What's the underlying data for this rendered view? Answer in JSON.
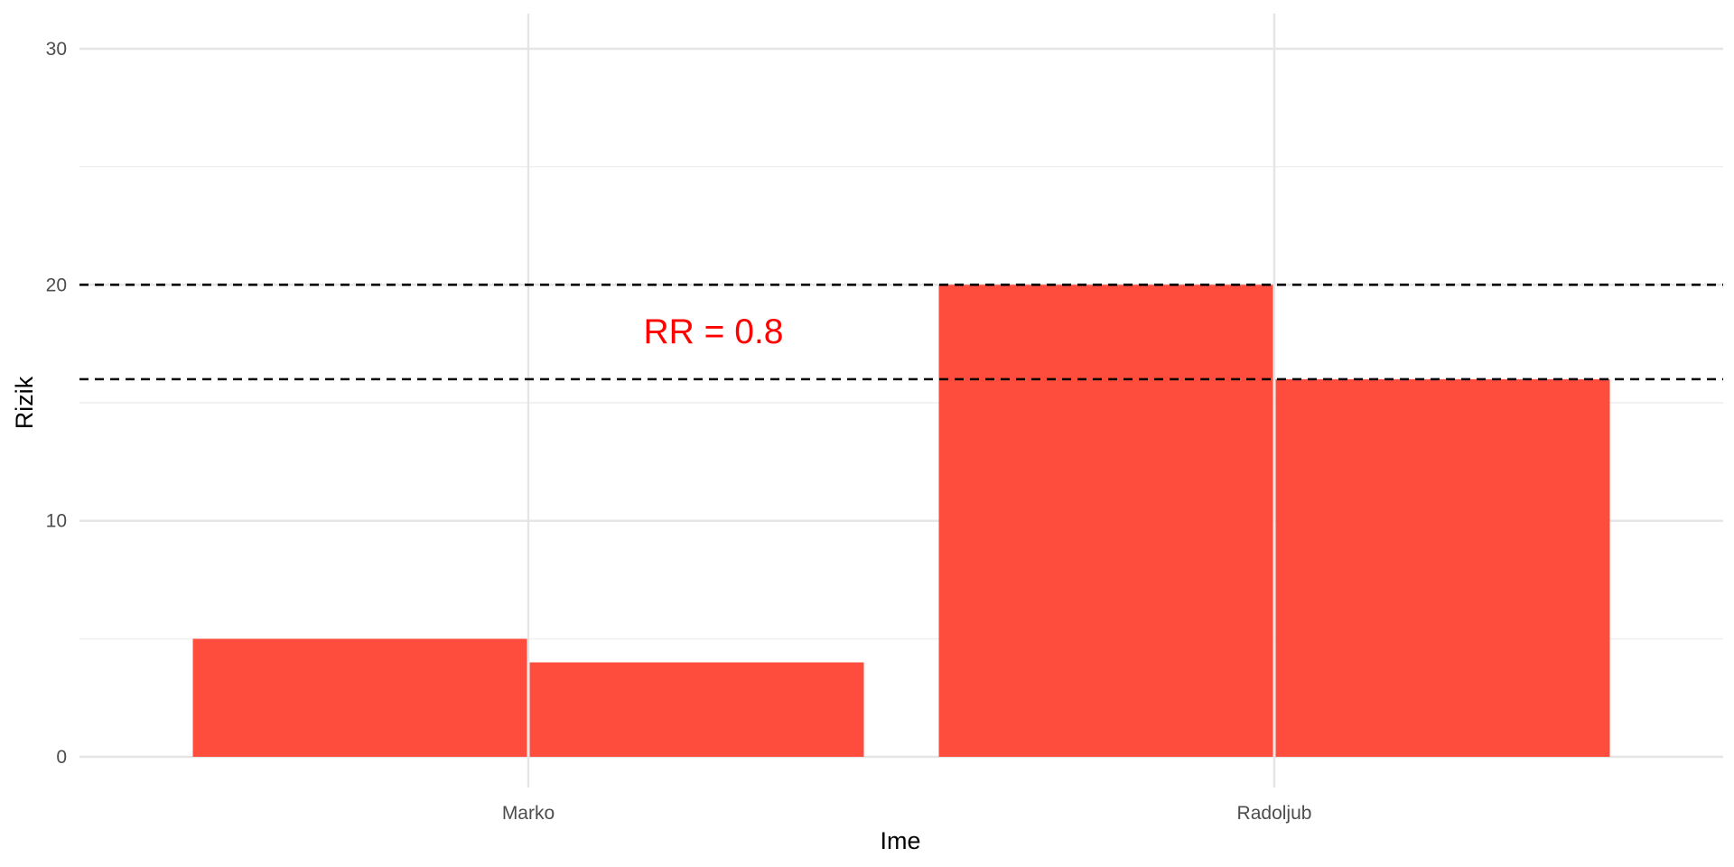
{
  "chart_data": {
    "type": "bar",
    "title": "",
    "xlabel": "Ime",
    "ylabel": "Rizik",
    "categories": [
      "Marko",
      "Radoljub"
    ],
    "series": [
      {
        "values": [
          5,
          20
        ]
      },
      {
        "values": [
          4,
          16
        ]
      }
    ],
    "ylim": [
      0,
      31.5
    ],
    "yticks": [
      0,
      10,
      20,
      30
    ],
    "reference_lines": [
      20,
      16
    ],
    "annotation": {
      "text": "RR = 0.8",
      "color": "#ff0000"
    },
    "bar_color": "#ff4d3d",
    "grid": true,
    "legend": "none"
  }
}
